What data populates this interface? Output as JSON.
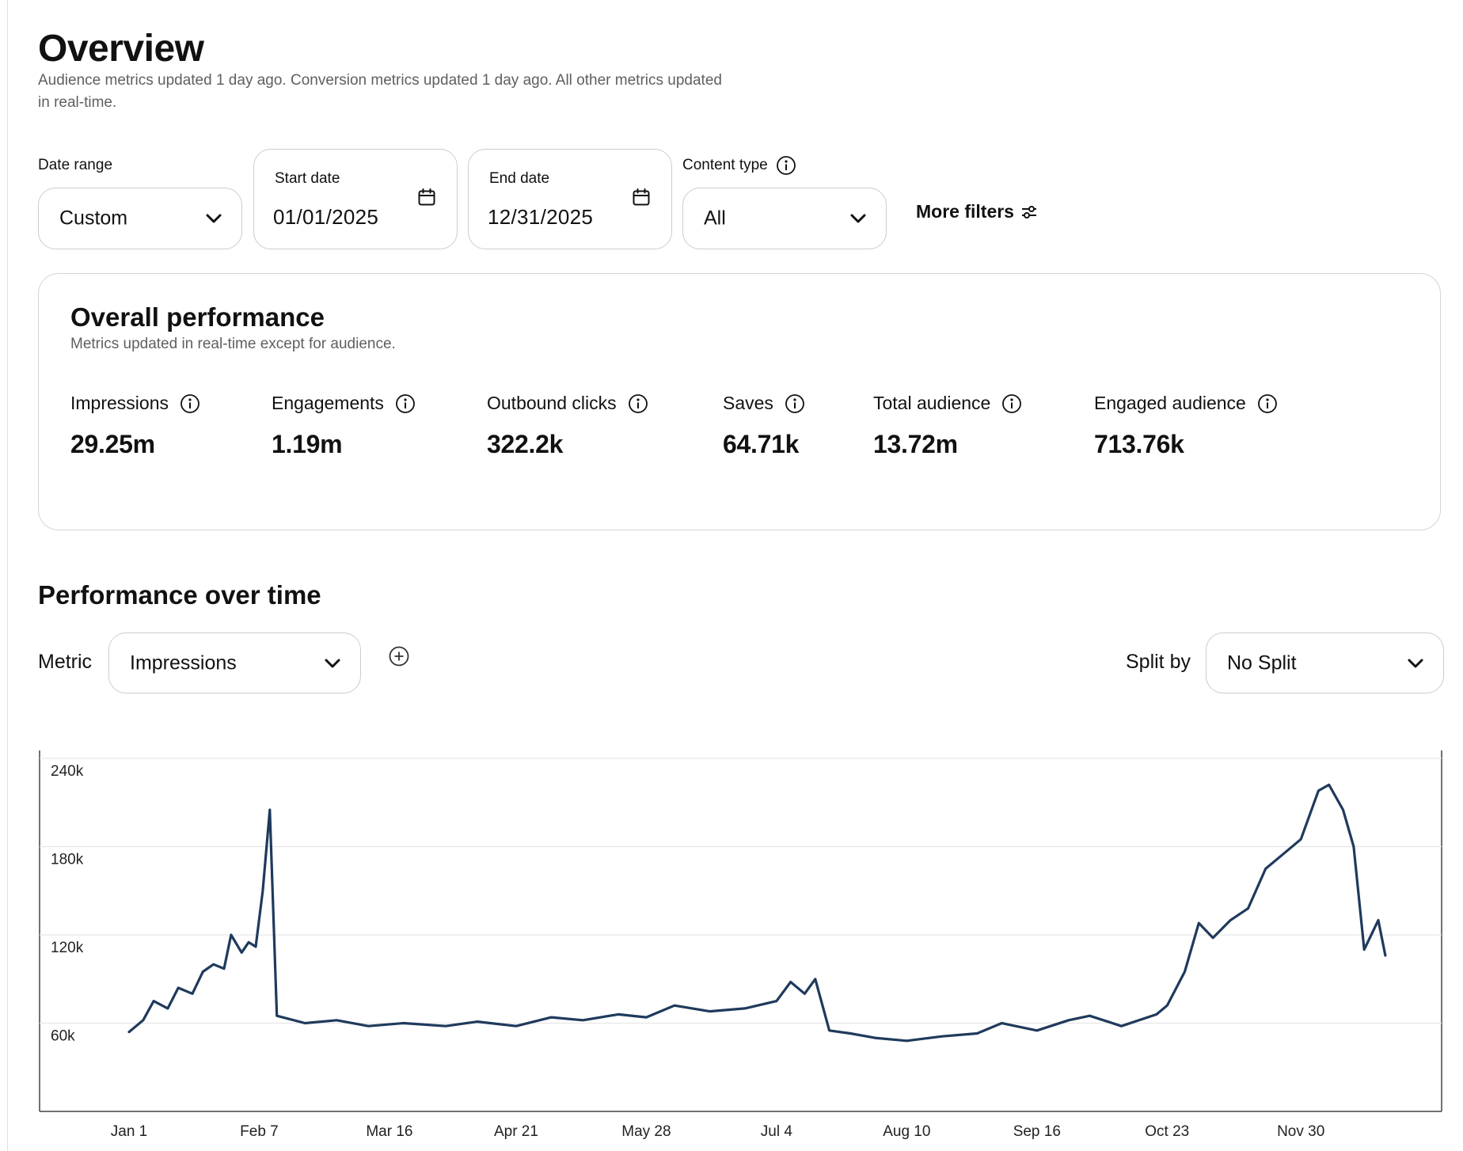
{
  "header": {
    "title": "Overview",
    "subtitle": "Audience metrics updated 1 day ago. Conversion metrics updated 1 day ago. All other metrics updated in real-time."
  },
  "filters": {
    "date_range": {
      "label": "Date range",
      "value": "Custom"
    },
    "start_date": {
      "label": "Start date",
      "value": "01/01/2025"
    },
    "end_date": {
      "label": "End date",
      "value": "12/31/2025"
    },
    "content_type": {
      "label": "Content type",
      "value": "All"
    },
    "more_filters_label": "More filters"
  },
  "overall": {
    "title": "Overall performance",
    "subtitle": "Metrics updated in real-time except for audience.",
    "metrics": [
      {
        "label": "Impressions",
        "value": "29.25m"
      },
      {
        "label": "Engagements",
        "value": "1.19m"
      },
      {
        "label": "Outbound clicks",
        "value": "322.2k"
      },
      {
        "label": "Saves",
        "value": "64.71k"
      },
      {
        "label": "Total audience",
        "value": "13.72m"
      },
      {
        "label": "Engaged audience",
        "value": "713.76k"
      }
    ]
  },
  "performance": {
    "title": "Performance over time",
    "metric_label": "Metric",
    "metric_value": "Impressions",
    "split_label": "Split by",
    "split_value": "No Split"
  },
  "colors": {
    "line": "#1f3a5c",
    "border": "#cdcdcd",
    "muted_text": "#5f5f5f"
  },
  "chart_data": {
    "type": "line",
    "x_tick_labels": [
      "Jan 1",
      "Feb 7",
      "Mar 16",
      "Apr 21",
      "May 28",
      "Jul 4",
      "Aug 10",
      "Sep 16",
      "Oct 23",
      "Nov 30"
    ],
    "y_tick_labels": [
      "60k",
      "120k",
      "180k",
      "240k"
    ],
    "ylim": [
      0,
      240000
    ],
    "grid": true,
    "series": [
      {
        "points": [
          [
            "2025-01-01",
            54000
          ],
          [
            "2025-01-05",
            62000
          ],
          [
            "2025-01-08",
            75000
          ],
          [
            "2025-01-12",
            70000
          ],
          [
            "2025-01-15",
            84000
          ],
          [
            "2025-01-19",
            80000
          ],
          [
            "2025-01-22",
            95000
          ],
          [
            "2025-01-25",
            100000
          ],
          [
            "2025-01-28",
            97000
          ],
          [
            "2025-01-30",
            120000
          ],
          [
            "2025-02-02",
            108000
          ],
          [
            "2025-02-04",
            115000
          ],
          [
            "2025-02-06",
            112000
          ],
          [
            "2025-02-08",
            150000
          ],
          [
            "2025-02-10",
            205000
          ],
          [
            "2025-02-12",
            65000
          ],
          [
            "2025-02-20",
            60000
          ],
          [
            "2025-03-01",
            62000
          ],
          [
            "2025-03-10",
            58000
          ],
          [
            "2025-03-20",
            60000
          ],
          [
            "2025-04-01",
            58000
          ],
          [
            "2025-04-10",
            61000
          ],
          [
            "2025-04-21",
            58000
          ],
          [
            "2025-05-01",
            64000
          ],
          [
            "2025-05-10",
            62000
          ],
          [
            "2025-05-20",
            66000
          ],
          [
            "2025-05-28",
            64000
          ],
          [
            "2025-06-05",
            72000
          ],
          [
            "2025-06-15",
            68000
          ],
          [
            "2025-06-25",
            70000
          ],
          [
            "2025-07-04",
            75000
          ],
          [
            "2025-07-08",
            88000
          ],
          [
            "2025-07-12",
            80000
          ],
          [
            "2025-07-15",
            90000
          ],
          [
            "2025-07-19",
            55000
          ],
          [
            "2025-07-25",
            53000
          ],
          [
            "2025-08-01",
            50000
          ],
          [
            "2025-08-10",
            48000
          ],
          [
            "2025-08-20",
            51000
          ],
          [
            "2025-08-30",
            53000
          ],
          [
            "2025-09-06",
            60000
          ],
          [
            "2025-09-16",
            55000
          ],
          [
            "2025-09-25",
            62000
          ],
          [
            "2025-10-01",
            65000
          ],
          [
            "2025-10-10",
            58000
          ],
          [
            "2025-10-20",
            66000
          ],
          [
            "2025-10-23",
            72000
          ],
          [
            "2025-10-28",
            95000
          ],
          [
            "2025-11-01",
            128000
          ],
          [
            "2025-11-05",
            118000
          ],
          [
            "2025-11-10",
            130000
          ],
          [
            "2025-11-15",
            138000
          ],
          [
            "2025-11-20",
            165000
          ],
          [
            "2025-11-25",
            175000
          ],
          [
            "2025-11-30",
            185000
          ],
          [
            "2025-12-05",
            218000
          ],
          [
            "2025-12-08",
            222000
          ],
          [
            "2025-12-12",
            205000
          ],
          [
            "2025-12-15",
            180000
          ],
          [
            "2025-12-18",
            110000
          ],
          [
            "2025-12-20",
            120000
          ],
          [
            "2025-12-22",
            130000
          ],
          [
            "2025-12-24",
            106000
          ]
        ]
      }
    ]
  }
}
